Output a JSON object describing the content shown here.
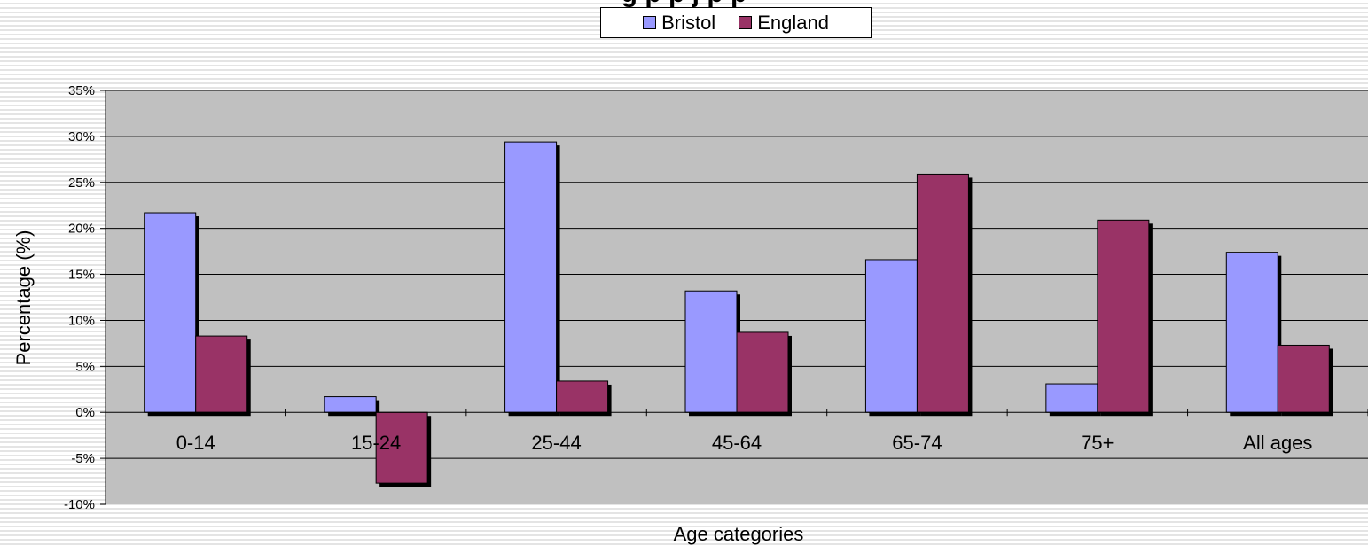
{
  "chart_data": {
    "type": "bar",
    "title": "g      p  p j        p p",
    "xlabel": "Age categories",
    "ylabel": "Percentage (%)",
    "categories": [
      "0-14",
      "15-24",
      "25-44",
      "45-64",
      "65-74",
      "75+",
      "All ages"
    ],
    "series": [
      {
        "name": "Bristol",
        "color": "#9999ff",
        "values": [
          21.7,
          1.7,
          29.4,
          13.2,
          16.6,
          3.1,
          17.4
        ]
      },
      {
        "name": "England",
        "color": "#993366",
        "values": [
          8.3,
          -7.7,
          3.4,
          8.7,
          25.9,
          20.9,
          7.3
        ]
      }
    ],
    "ylim": [
      -10,
      35
    ],
    "yticks": [
      "-10%",
      "-5%",
      "0%",
      "5%",
      "10%",
      "15%",
      "20%",
      "25%",
      "30%",
      "35%"
    ],
    "grid": true,
    "legend_position": "top-center",
    "plot_background": "#c0c0c0"
  }
}
